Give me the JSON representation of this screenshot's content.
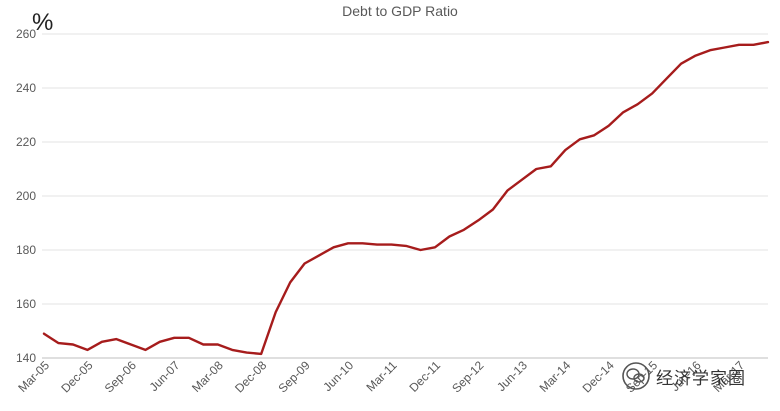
{
  "chart_data": {
    "type": "line",
    "title": "Debt to GDP Ratio",
    "ylabel": "%",
    "xlabel": "",
    "ylim": [
      140,
      260
    ],
    "yticks": [
      140,
      160,
      180,
      200,
      220,
      240,
      260
    ],
    "grid": "horizontal",
    "x_tick_labels": [
      "Mar-05",
      "Dec-05",
      "Sep-06",
      "Jun-07",
      "Mar-08",
      "Dec-08",
      "Sep-09",
      "Jun-10",
      "Mar-11",
      "Dec-11",
      "Sep-12",
      "Jun-13",
      "Mar-14",
      "Dec-14",
      "Sep-15",
      "Jun-16",
      "Mar-17"
    ],
    "series": [
      {
        "color": "#a61c1c",
        "values": [
          149,
          145.5,
          145,
          143,
          146,
          147,
          145,
          143,
          146,
          147.5,
          147.5,
          145,
          145,
          143,
          142,
          141.5,
          157,
          168,
          175,
          178,
          181,
          182.5,
          182.5,
          182,
          182,
          181.5,
          180,
          181,
          185,
          187.5,
          191,
          195,
          202,
          206,
          210,
          211,
          217,
          221,
          222.5,
          226,
          231,
          234,
          238,
          243.5,
          249,
          252,
          254,
          255,
          256,
          256,
          257
        ]
      }
    ]
  },
  "watermark": {
    "text": "经济学家圈",
    "icon": "wechat-icon"
  }
}
